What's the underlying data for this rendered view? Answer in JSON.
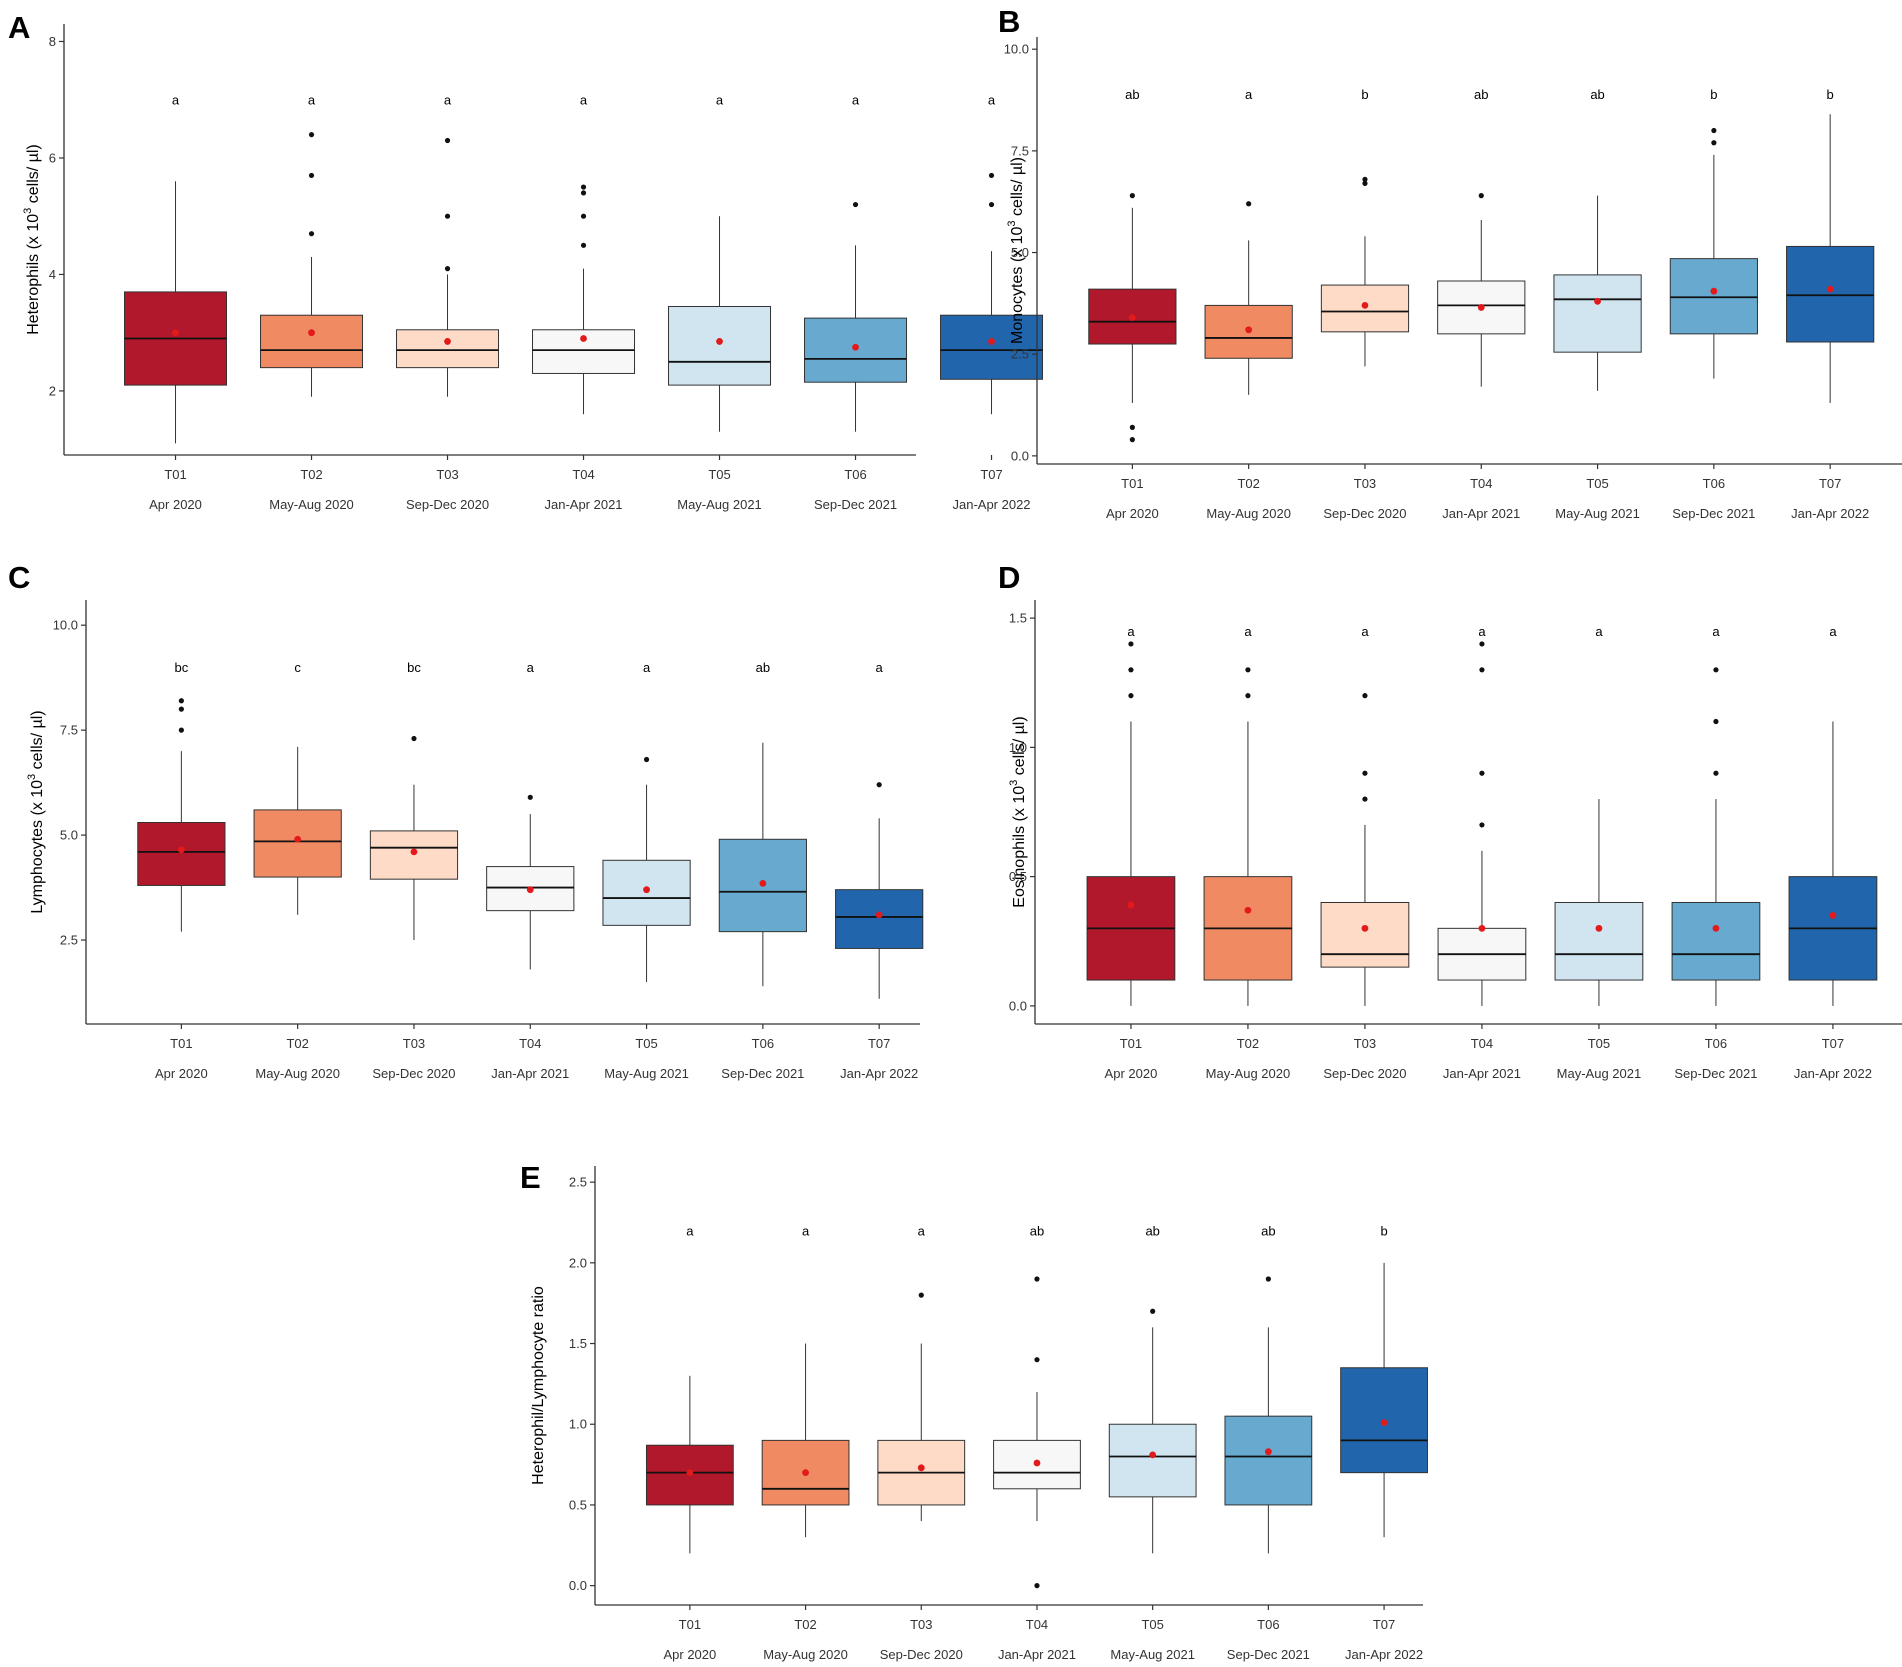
{
  "categories": [
    "T01",
    "T02",
    "T03",
    "T04",
    "T05",
    "T06",
    "T07"
  ],
  "periods": [
    "Apr 2020",
    "May-Aug 2020",
    "Sep-Dec 2020",
    "Jan-Apr 2021",
    "May-Aug 2021",
    "Sep-Dec 2021",
    "Jan-Apr 2022"
  ],
  "colors": [
    "#b2182b",
    "#ef8a62",
    "#fddbc7",
    "#f7f7f7",
    "#d1e5f0",
    "#67a9cf",
    "#2166ac"
  ],
  "mean_color": "#e31a1c",
  "chart_data": [
    {
      "panel": "A",
      "type": "boxplot",
      "ylabel": "Heterophils (x 10^3 cells/ µl)",
      "ylabel_parts": [
        "Heterophils (x 10",
        "3",
        " cells/ µl)"
      ],
      "ylim": [
        0.9,
        8.3
      ],
      "yticks": [
        2,
        4,
        6,
        8
      ],
      "ytick_labels": [
        "2",
        "4",
        "6",
        "8"
      ],
      "sig_label_y": 7.0,
      "letters": [
        "a",
        "a",
        "a",
        "a",
        "a",
        "a",
        "a"
      ],
      "boxes": [
        {
          "min": 1.1,
          "q1": 2.1,
          "median": 2.9,
          "q3": 3.7,
          "max": 5.6,
          "mean": 3.0,
          "outliers": []
        },
        {
          "min": 1.9,
          "q1": 2.4,
          "median": 2.7,
          "q3": 3.3,
          "max": 4.3,
          "mean": 3.0,
          "outliers": [
            4.7,
            5.7,
            6.4
          ]
        },
        {
          "min": 1.9,
          "q1": 2.4,
          "median": 2.7,
          "q3": 3.05,
          "max": 4.0,
          "mean": 2.85,
          "outliers": [
            4.1,
            5.0,
            6.3
          ]
        },
        {
          "min": 1.6,
          "q1": 2.3,
          "median": 2.7,
          "q3": 3.05,
          "max": 4.1,
          "mean": 2.9,
          "outliers": [
            4.5,
            5.0,
            5.4,
            5.5
          ]
        },
        {
          "min": 1.3,
          "q1": 2.1,
          "median": 2.5,
          "q3": 3.45,
          "max": 5.0,
          "mean": 2.85,
          "outliers": []
        },
        {
          "min": 1.3,
          "q1": 2.15,
          "median": 2.55,
          "q3": 3.25,
          "max": 4.5,
          "mean": 2.75,
          "outliers": [
            5.2
          ]
        },
        {
          "min": 1.6,
          "q1": 2.2,
          "median": 2.7,
          "q3": 3.3,
          "max": 4.4,
          "mean": 2.85,
          "outliers": [
            5.2,
            5.7
          ]
        }
      ]
    },
    {
      "panel": "B",
      "type": "boxplot",
      "ylabel": "Monocytes (x 10^3 cells/ µl)",
      "ylabel_parts": [
        "Monocytes (x 10",
        "3",
        " cells/ µl)"
      ],
      "ylim": [
        -0.2,
        10.3
      ],
      "yticks": [
        0,
        2.5,
        5,
        7.5,
        10
      ],
      "ytick_labels": [
        "0.0",
        "2.5",
        "5.0",
        "7.5",
        "10.0"
      ],
      "sig_label_y": 8.9,
      "letters": [
        "ab",
        "a",
        "b",
        "ab",
        "ab",
        "b",
        "b"
      ],
      "boxes": [
        {
          "min": 1.3,
          "q1": 2.75,
          "median": 3.3,
          "q3": 4.1,
          "max": 6.1,
          "mean": 3.4,
          "outliers": [
            0.4,
            0.7,
            6.4
          ]
        },
        {
          "min": 1.5,
          "q1": 2.4,
          "median": 2.9,
          "q3": 3.7,
          "max": 5.3,
          "mean": 3.1,
          "outliers": [
            6.2
          ]
        },
        {
          "min": 2.2,
          "q1": 3.05,
          "median": 3.55,
          "q3": 4.2,
          "max": 5.4,
          "mean": 3.7,
          "outliers": [
            6.7,
            6.8
          ]
        },
        {
          "min": 1.7,
          "q1": 3.0,
          "median": 3.7,
          "q3": 4.3,
          "max": 5.8,
          "mean": 3.65,
          "outliers": [
            6.4
          ]
        },
        {
          "min": 1.6,
          "q1": 2.55,
          "median": 3.85,
          "q3": 4.45,
          "max": 6.4,
          "mean": 3.8,
          "outliers": []
        },
        {
          "min": 1.9,
          "q1": 3.0,
          "median": 3.9,
          "q3": 4.85,
          "max": 7.4,
          "mean": 4.05,
          "outliers": [
            7.7,
            8.0
          ]
        },
        {
          "min": 1.3,
          "q1": 2.8,
          "median": 3.95,
          "q3": 5.15,
          "max": 8.4,
          "mean": 4.1,
          "outliers": []
        }
      ]
    },
    {
      "panel": "C",
      "type": "boxplot",
      "ylabel": "Lymphocytes (x 10^3 cells/ µl)",
      "ylabel_parts": [
        "Lymphocytes (x 10",
        "3",
        " cells/ µl)"
      ],
      "ylim": [
        0.5,
        10.6
      ],
      "yticks": [
        2.5,
        5,
        7.5,
        10
      ],
      "ytick_labels": [
        "2.5",
        "5.0",
        "7.5",
        "10.0"
      ],
      "sig_label_y": 9.0,
      "letters": [
        "bc",
        "c",
        "bc",
        "a",
        "a",
        "ab",
        "a"
      ],
      "boxes": [
        {
          "min": 2.7,
          "q1": 3.8,
          "median": 4.6,
          "q3": 5.3,
          "max": 7.0,
          "mean": 4.65,
          "outliers": [
            7.5,
            8.0,
            8.2
          ]
        },
        {
          "min": 3.1,
          "q1": 4.0,
          "median": 4.85,
          "q3": 5.6,
          "max": 7.1,
          "mean": 4.9,
          "outliers": []
        },
        {
          "min": 2.5,
          "q1": 3.95,
          "median": 4.7,
          "q3": 5.1,
          "max": 6.2,
          "mean": 4.6,
          "outliers": [
            7.3
          ]
        },
        {
          "min": 1.8,
          "q1": 3.2,
          "median": 3.75,
          "q3": 4.25,
          "max": 5.5,
          "mean": 3.7,
          "outliers": [
            5.9
          ]
        },
        {
          "min": 1.5,
          "q1": 2.85,
          "median": 3.5,
          "q3": 4.4,
          "max": 6.2,
          "mean": 3.7,
          "outliers": [
            6.8
          ]
        },
        {
          "min": 1.4,
          "q1": 2.7,
          "median": 3.65,
          "q3": 4.9,
          "max": 7.2,
          "mean": 3.85,
          "outliers": []
        },
        {
          "min": 1.1,
          "q1": 2.3,
          "median": 3.05,
          "q3": 3.7,
          "max": 5.4,
          "mean": 3.1,
          "outliers": [
            6.2
          ]
        }
      ]
    },
    {
      "panel": "D",
      "type": "boxplot",
      "ylabel": "Eosinophils (x 10^3 cells/ µl)",
      "ylabel_parts": [
        "Eosinophils (x 10",
        "3",
        " cells/ µl)"
      ],
      "ylim": [
        -0.07,
        1.57
      ],
      "yticks": [
        0,
        0.5,
        1,
        1.5
      ],
      "ytick_labels": [
        "0.0",
        "0.5",
        "1.0",
        "1.5"
      ],
      "sig_label_y": 1.45,
      "letters": [
        "a",
        "a",
        "a",
        "a",
        "a",
        "a",
        "a"
      ],
      "boxes": [
        {
          "min": 0.0,
          "q1": 0.1,
          "median": 0.3,
          "q3": 0.5,
          "max": 1.1,
          "mean": 0.39,
          "outliers": [
            1.2,
            1.3,
            1.4
          ]
        },
        {
          "min": 0.0,
          "q1": 0.1,
          "median": 0.3,
          "q3": 0.5,
          "max": 1.1,
          "mean": 0.37,
          "outliers": [
            1.2,
            1.3
          ]
        },
        {
          "min": 0.0,
          "q1": 0.15,
          "median": 0.2,
          "q3": 0.4,
          "max": 0.7,
          "mean": 0.3,
          "outliers": [
            0.8,
            0.9,
            1.2
          ]
        },
        {
          "min": 0.0,
          "q1": 0.1,
          "median": 0.2,
          "q3": 0.3,
          "max": 0.6,
          "mean": 0.3,
          "outliers": [
            0.7,
            0.9,
            1.3,
            1.4
          ]
        },
        {
          "min": 0.0,
          "q1": 0.1,
          "median": 0.2,
          "q3": 0.4,
          "max": 0.8,
          "mean": 0.3,
          "outliers": []
        },
        {
          "min": 0.0,
          "q1": 0.1,
          "median": 0.2,
          "q3": 0.4,
          "max": 0.8,
          "mean": 0.3,
          "outliers": [
            0.9,
            1.1,
            1.3
          ]
        },
        {
          "min": 0.0,
          "q1": 0.1,
          "median": 0.3,
          "q3": 0.5,
          "max": 1.1,
          "mean": 0.35,
          "outliers": []
        }
      ]
    },
    {
      "panel": "E",
      "type": "boxplot",
      "ylabel": "Heterophil/Lymphocyte ratio",
      "ylabel_parts": [
        "Heterophil/Lymphocyte ratio",
        "",
        ""
      ],
      "ylim": [
        -0.12,
        2.6
      ],
      "yticks": [
        0,
        0.5,
        1,
        1.5,
        2,
        2.5
      ],
      "ytick_labels": [
        "0.0",
        "0.5",
        "1.0",
        "1.5",
        "2.0",
        "2.5"
      ],
      "sig_label_y": 2.2,
      "letters": [
        "a",
        "a",
        "a",
        "ab",
        "ab",
        "ab",
        "b"
      ],
      "boxes": [
        {
          "min": 0.2,
          "q1": 0.5,
          "median": 0.7,
          "q3": 0.87,
          "max": 1.3,
          "mean": 0.7,
          "outliers": []
        },
        {
          "min": 0.3,
          "q1": 0.5,
          "median": 0.6,
          "q3": 0.9,
          "max": 1.5,
          "mean": 0.7,
          "outliers": []
        },
        {
          "min": 0.4,
          "q1": 0.5,
          "median": 0.7,
          "q3": 0.9,
          "max": 1.5,
          "mean": 0.73,
          "outliers": [
            1.8
          ]
        },
        {
          "min": 0.4,
          "q1": 0.6,
          "median": 0.7,
          "q3": 0.9,
          "max": 1.2,
          "mean": 0.76,
          "outliers": [
            0.0,
            1.4,
            1.9
          ]
        },
        {
          "min": 0.2,
          "q1": 0.55,
          "median": 0.8,
          "q3": 1.0,
          "max": 1.6,
          "mean": 0.81,
          "outliers": [
            1.7
          ]
        },
        {
          "min": 0.2,
          "q1": 0.5,
          "median": 0.8,
          "q3": 1.05,
          "max": 1.6,
          "mean": 0.83,
          "outliers": [
            1.9
          ]
        },
        {
          "min": 0.3,
          "q1": 0.7,
          "median": 0.9,
          "q3": 1.35,
          "max": 2.0,
          "mean": 1.01,
          "outliers": []
        }
      ]
    }
  ]
}
